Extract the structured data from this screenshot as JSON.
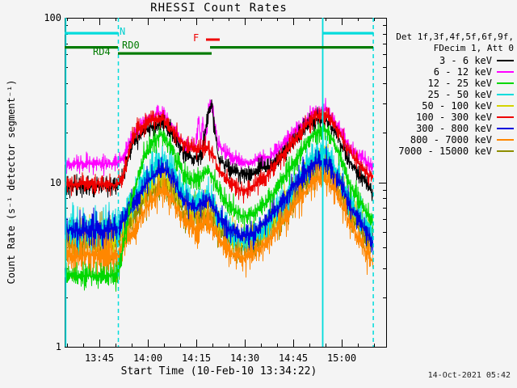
{
  "chart_data": {
    "type": "line",
    "title": "RHESSI Count Rates",
    "xlabel": "Start Time (10-Feb-10 13:34:22)",
    "ylabel": "Count Rate (s⁻¹ detector segment⁻¹)",
    "yscale": "log",
    "ylim": [
      1,
      100
    ],
    "x_range_minutes": [
      0,
      99.5
    ],
    "data_end_minute": 95.5,
    "x_minor_tick_step_min": 5,
    "y_ticks": [
      {
        "label": "100",
        "value": 100
      },
      {
        "label": "10",
        "value": 10
      },
      {
        "label": "1",
        "value": 1
      }
    ],
    "x_ticks": [
      {
        "label": "13:45",
        "minute": 10.63
      },
      {
        "label": "14:00",
        "minute": 25.63
      },
      {
        "label": "14:15",
        "minute": 40.63
      },
      {
        "label": "14:30",
        "minute": 55.63
      },
      {
        "label": "14:45",
        "minute": 70.63
      },
      {
        "label": "15:00",
        "minute": 85.63
      }
    ],
    "series": [
      {
        "name": "3 - 6 keV",
        "color": "#000000",
        "sigma": 0.065,
        "keyframes": [
          [
            0,
            9.5
          ],
          [
            16.2,
            9.5
          ],
          [
            18,
            11
          ],
          [
            21,
            17
          ],
          [
            25,
            21
          ],
          [
            30,
            23
          ],
          [
            33,
            20
          ],
          [
            37,
            15
          ],
          [
            40,
            14
          ],
          [
            42.5,
            15
          ],
          [
            44.5,
            27
          ],
          [
            45.5,
            29
          ],
          [
            46.5,
            20
          ],
          [
            47.5,
            14
          ],
          [
            50,
            12.5
          ],
          [
            53.5,
            11.5
          ],
          [
            57.5,
            11
          ],
          [
            60.5,
            12.5
          ],
          [
            63,
            12
          ],
          [
            66,
            14
          ],
          [
            70,
            17
          ],
          [
            74,
            21
          ],
          [
            77.5,
            24
          ],
          [
            81,
            24
          ],
          [
            85,
            18
          ],
          [
            88.5,
            13
          ],
          [
            92.5,
            10.5
          ],
          [
            95.5,
            8.5
          ]
        ]
      },
      {
        "name": "6 - 12 keV",
        "color": "#ff00ff",
        "sigma": 0.06,
        "keyframes": [
          [
            0,
            13
          ],
          [
            16.2,
            13
          ],
          [
            18,
            14
          ],
          [
            21,
            19
          ],
          [
            25,
            24
          ],
          [
            30,
            26.5
          ],
          [
            33,
            22
          ],
          [
            37,
            17
          ],
          [
            40.5,
            16.5
          ],
          [
            41.5,
            25
          ],
          [
            42,
            17
          ],
          [
            42.75,
            23
          ],
          [
            43.5,
            17.5
          ],
          [
            44.5,
            29
          ],
          [
            45.5,
            31
          ],
          [
            46.5,
            22
          ],
          [
            47.5,
            17
          ],
          [
            50,
            15
          ],
          [
            53.5,
            13.5
          ],
          [
            57.5,
            13
          ],
          [
            60.5,
            14.5
          ],
          [
            63,
            14
          ],
          [
            66,
            16
          ],
          [
            70,
            19
          ],
          [
            74,
            23
          ],
          [
            77.5,
            27
          ],
          [
            81,
            27.5
          ],
          [
            85,
            21
          ],
          [
            88.5,
            16
          ],
          [
            92.5,
            14
          ],
          [
            95.5,
            12.5
          ]
        ]
      },
      {
        "name": "12 - 25 keV",
        "color": "#00d800",
        "sigma": 0.08,
        "keyframes": [
          [
            0,
            2.7
          ],
          [
            16.2,
            2.7
          ],
          [
            17.5,
            3.5
          ],
          [
            20,
            7
          ],
          [
            23.75,
            13
          ],
          [
            27.5,
            18
          ],
          [
            30,
            19.5
          ],
          [
            33,
            16
          ],
          [
            37,
            11
          ],
          [
            40.5,
            10
          ],
          [
            44.5,
            12
          ],
          [
            47.5,
            9
          ],
          [
            51,
            7
          ],
          [
            55,
            6.2
          ],
          [
            58.75,
            6.5
          ],
          [
            62.5,
            7.5
          ],
          [
            66,
            9.5
          ],
          [
            70,
            12.5
          ],
          [
            74,
            16.5
          ],
          [
            77.5,
            20
          ],
          [
            81,
            21
          ],
          [
            85,
            15
          ],
          [
            88.5,
            9.5
          ],
          [
            92.5,
            7
          ],
          [
            95.5,
            5.5
          ]
        ]
      },
      {
        "name": "25 - 50 keV",
        "color": "#00dcdc",
        "sigma": 0.12,
        "keyframes": [
          [
            0,
            5.2
          ],
          [
            16.2,
            5.2
          ],
          [
            21,
            8
          ],
          [
            25,
            11
          ],
          [
            30,
            14
          ],
          [
            33,
            12
          ],
          [
            37,
            8.5
          ],
          [
            40.5,
            7.5
          ],
          [
            44.5,
            8.5
          ],
          [
            47.5,
            6.5
          ],
          [
            51,
            5
          ],
          [
            55,
            4.3
          ],
          [
            58.75,
            4.6
          ],
          [
            62.5,
            5.5
          ],
          [
            66,
            7
          ],
          [
            70,
            9
          ],
          [
            74,
            12
          ],
          [
            77.5,
            14.5
          ],
          [
            81,
            15
          ],
          [
            85,
            11
          ],
          [
            88.5,
            7.5
          ],
          [
            92.5,
            5.5
          ],
          [
            95.5,
            4.6
          ]
        ]
      },
      {
        "name": "50 - 100 keV",
        "color": "#d4d400",
        "sigma": 0.11,
        "keyframes": [
          [
            0,
            4.8
          ],
          [
            16.2,
            4.8
          ],
          [
            21,
            7
          ],
          [
            25,
            9.5
          ],
          [
            30,
            12
          ],
          [
            33,
            10.5
          ],
          [
            37,
            7.5
          ],
          [
            40.5,
            6.8
          ],
          [
            44.5,
            7.5
          ],
          [
            47.5,
            6
          ],
          [
            51,
            4.8
          ],
          [
            55,
            4.4
          ],
          [
            58.75,
            4.7
          ],
          [
            62.5,
            5.3
          ],
          [
            66,
            6.5
          ],
          [
            70,
            8.5
          ],
          [
            74,
            11
          ],
          [
            77.5,
            13
          ],
          [
            81,
            13.5
          ],
          [
            85,
            10
          ],
          [
            88.5,
            7
          ],
          [
            92.5,
            5.2
          ],
          [
            95.5,
            4.4
          ]
        ]
      },
      {
        "name": "100 - 300 keV",
        "color": "#ee0000",
        "sigma": 0.07,
        "keyframes": [
          [
            0,
            9.7
          ],
          [
            16.2,
            9.7
          ],
          [
            18,
            10.5
          ],
          [
            21,
            19
          ],
          [
            25,
            23
          ],
          [
            30,
            25
          ],
          [
            33,
            21
          ],
          [
            37,
            17
          ],
          [
            41,
            16
          ],
          [
            44.5,
            16
          ],
          [
            46.5,
            14
          ],
          [
            47.5,
            12
          ],
          [
            51,
            10
          ],
          [
            55,
            8.8
          ],
          [
            58.75,
            9.5
          ],
          [
            62.5,
            11
          ],
          [
            66,
            13.5
          ],
          [
            70,
            17
          ],
          [
            74,
            21.5
          ],
          [
            77.5,
            25.5
          ],
          [
            81,
            26
          ],
          [
            85,
            20
          ],
          [
            88.5,
            15
          ],
          [
            92.5,
            12
          ],
          [
            95.5,
            10.5
          ]
        ]
      },
      {
        "name": "300 - 800 keV",
        "color": "#0000dd",
        "sigma": 0.09,
        "keyframes": [
          [
            0,
            5.1
          ],
          [
            16.2,
            5.1
          ],
          [
            21,
            7.2
          ],
          [
            25,
            9.8
          ],
          [
            30,
            12.3
          ],
          [
            33,
            10.8
          ],
          [
            37,
            7.8
          ],
          [
            40.5,
            7
          ],
          [
            44.5,
            7.8
          ],
          [
            47.5,
            6.2
          ],
          [
            51,
            5.2
          ],
          [
            55,
            4.7
          ],
          [
            58.75,
            5
          ],
          [
            62.5,
            5.8
          ],
          [
            66,
            7
          ],
          [
            70,
            9
          ],
          [
            74,
            11.3
          ],
          [
            77.5,
            13
          ],
          [
            81,
            13.2
          ],
          [
            85,
            10
          ],
          [
            88.5,
            7
          ],
          [
            92.5,
            5.2
          ],
          [
            95.5,
            4.2
          ]
        ]
      },
      {
        "name": "800 - 7000 keV",
        "color": "#ff8700",
        "sigma": 0.11,
        "keyframes": [
          [
            0,
            3.6
          ],
          [
            16.2,
            3.6
          ],
          [
            21,
            5
          ],
          [
            25,
            7
          ],
          [
            30,
            9
          ],
          [
            33,
            8
          ],
          [
            37,
            5.8
          ],
          [
            40.5,
            5.2
          ],
          [
            44.5,
            5.8
          ],
          [
            47.5,
            4.6
          ],
          [
            51,
            3.8
          ],
          [
            55,
            3.4
          ],
          [
            58.75,
            3.7
          ],
          [
            62.5,
            4.3
          ],
          [
            66,
            5.2
          ],
          [
            70,
            6.7
          ],
          [
            74,
            8.6
          ],
          [
            77.5,
            10.3
          ],
          [
            81,
            10.5
          ],
          [
            85,
            8
          ],
          [
            88.5,
            5.5
          ],
          [
            92.5,
            4
          ],
          [
            95.5,
            3.2
          ]
        ]
      },
      {
        "name": "7000 - 15000 keV",
        "color": "#8e8e00",
        "sigma": 0.12,
        "keyframes": [
          [
            0,
            4.4
          ],
          [
            16.2,
            4.4
          ],
          [
            21,
            6
          ],
          [
            25,
            8
          ],
          [
            30,
            10
          ],
          [
            33,
            9
          ],
          [
            37,
            6.5
          ],
          [
            40.5,
            6
          ],
          [
            44.5,
            6.5
          ],
          [
            47.5,
            5.3
          ],
          [
            51,
            4.4
          ],
          [
            55,
            4.1
          ],
          [
            58.75,
            4.4
          ],
          [
            62.5,
            5
          ],
          [
            66,
            6
          ],
          [
            70,
            7.8
          ],
          [
            74,
            10
          ],
          [
            77.5,
            12
          ],
          [
            81,
            12.3
          ],
          [
            85,
            9
          ],
          [
            88.5,
            6.3
          ],
          [
            92.5,
            4.8
          ],
          [
            95.5,
            4.1
          ]
        ]
      }
    ]
  },
  "flags": {
    "night": {
      "label": "N",
      "color": "#00dcdc",
      "segments_min": [
        [
          0,
          16.5
        ],
        [
          79.75,
          95.5
        ]
      ]
    },
    "flare": {
      "label": "F",
      "color": "#ee0000",
      "segments_min": [
        [
          43.75,
          48
        ]
      ]
    },
    "rd0": {
      "label": "RD0",
      "color": "#007b00",
      "segments_min": [
        [
          0,
          16.5
        ],
        [
          45,
          95.5
        ]
      ]
    },
    "rd4": {
      "label": "RD4",
      "color": "#007b00",
      "segments_min": [
        [
          16.5,
          45.5
        ]
      ]
    },
    "vlines_solid_min": [
      0.2,
      79.75
    ],
    "vlines_dashed_min": [
      16.5,
      95.4
    ]
  },
  "legend": {
    "header_lines": [
      "Det 1f,3f,4f,5f,6f,9f,",
      "FDecim 1, Att 0"
    ],
    "entries": [
      {
        "label": "3 - 6 keV",
        "color": "#000000"
      },
      {
        "label": "6 - 12 keV",
        "color": "#ff00ff"
      },
      {
        "label": "12 - 25 keV",
        "color": "#00d800"
      },
      {
        "label": "25 - 50 keV",
        "color": "#00dcdc"
      },
      {
        "label": "50 - 100 keV",
        "color": "#d4d400"
      },
      {
        "label": "100 - 300 keV",
        "color": "#ee0000"
      },
      {
        "label": "300 - 800 keV",
        "color": "#0000dd"
      },
      {
        "label": "800 - 7000 keV",
        "color": "#ff8700"
      },
      {
        "label": "7000 - 15000 keV",
        "color": "#8e8e00"
      }
    ]
  },
  "footer": {
    "timestamp": "14-Oct-2021 05:42"
  }
}
